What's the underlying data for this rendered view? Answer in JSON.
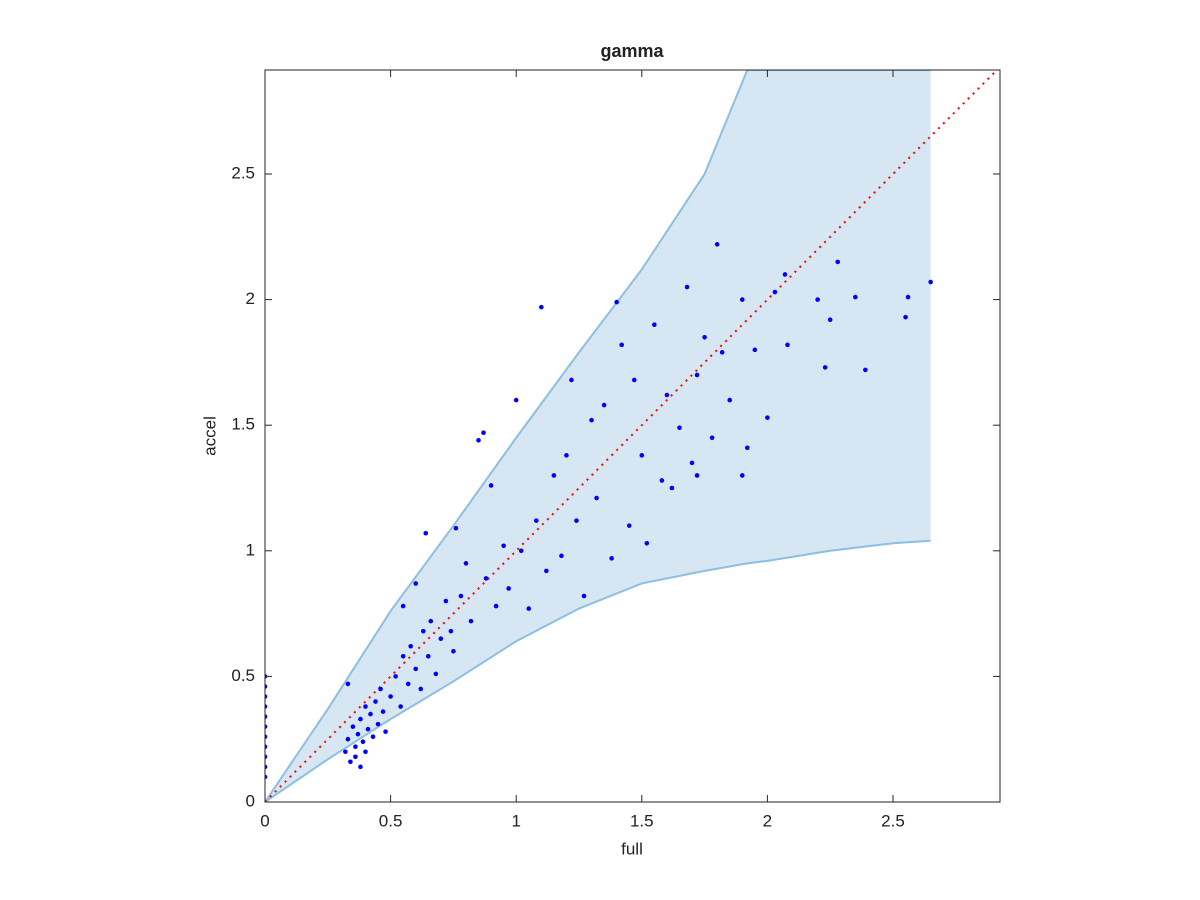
{
  "chart_data": {
    "type": "scatter",
    "title": "gamma",
    "x_label": "full",
    "y_label": "accel",
    "xlim": [
      0,
      2.926
    ],
    "ylim": [
      0,
      2.914
    ],
    "xticks": [
      0,
      0.5,
      1,
      1.5,
      2,
      2.5
    ],
    "yticks": [
      0,
      0.5,
      1,
      1.5,
      2,
      2.5
    ],
    "grid": false,
    "band": {
      "color": "#d6e7f3",
      "edge_color": "#8cbfe0",
      "x": [
        0,
        0.25,
        0.5,
        0.75,
        1,
        1.25,
        1.5,
        1.75,
        1.92,
        2.0,
        2.25,
        2.5,
        2.65
      ],
      "upper": [
        0,
        0.37,
        0.76,
        1.1,
        1.45,
        1.79,
        2.12,
        2.5,
        2.914,
        2.914,
        2.914,
        2.914,
        2.914
      ],
      "lower": [
        0,
        0.17,
        0.33,
        0.48,
        0.64,
        0.77,
        0.87,
        0.92,
        0.95,
        0.96,
        1.0,
        1.03,
        1.04
      ]
    },
    "diagonal": {
      "color": "#ff0000",
      "x": [
        0,
        2.926
      ],
      "y": [
        0,
        2.926
      ]
    },
    "points": {
      "color": "#0000ff",
      "x": [
        0,
        0,
        0,
        0,
        0,
        0,
        0,
        0,
        0,
        0,
        0,
        0.32,
        0.33,
        0.34,
        0.35,
        0.36,
        0.37,
        0.38,
        0.38,
        0.39,
        0.4,
        0.41,
        0.42,
        0.43,
        0.44,
        0.45,
        0.46,
        0.47,
        0.48,
        0.33,
        0.36,
        0.4,
        0.5,
        0.52,
        0.54,
        0.55,
        0.57,
        0.58,
        0.6,
        0.62,
        0.63,
        0.65,
        0.66,
        0.68,
        0.7,
        0.72,
        0.74,
        0.75,
        0.55,
        0.6,
        0.64,
        0.76,
        0.78,
        0.8,
        0.82,
        0.85,
        0.87,
        0.88,
        0.9,
        0.92,
        0.95,
        0.97,
        1.0,
        1.02,
        1.05,
        1.08,
        1.1,
        1.12,
        1.15,
        1.18,
        1.2,
        1.22,
        1.24,
        1.27,
        1.3,
        1.32,
        1.35,
        1.38,
        1.4,
        1.42,
        1.45,
        1.47,
        1.5,
        1.52,
        1.55,
        1.58,
        1.6,
        1.62,
        1.65,
        1.68,
        1.7,
        1.72,
        1.75,
        1.78,
        1.8,
        1.82,
        1.85,
        1.9,
        1.92,
        1.95,
        2.0,
        2.03,
        2.07,
        2.08,
        2.2,
        2.23,
        2.25,
        2.28,
        2.35,
        2.39,
        2.55,
        2.56,
        2.65,
        1.9,
        1.72
      ],
      "y": [
        0.1,
        0.14,
        0.18,
        0.22,
        0.26,
        0.3,
        0.34,
        0.38,
        0.42,
        0.46,
        0.5,
        0.2,
        0.25,
        0.16,
        0.3,
        0.22,
        0.27,
        0.14,
        0.33,
        0.24,
        0.2,
        0.29,
        0.35,
        0.26,
        0.4,
        0.31,
        0.45,
        0.36,
        0.28,
        0.47,
        0.18,
        0.38,
        0.42,
        0.5,
        0.38,
        0.58,
        0.47,
        0.62,
        0.53,
        0.45,
        0.68,
        0.58,
        0.72,
        0.51,
        0.65,
        0.8,
        0.68,
        0.6,
        0.78,
        0.87,
        1.07,
        1.09,
        0.82,
        0.95,
        0.72,
        1.44,
        1.47,
        0.89,
        1.26,
        0.78,
        1.02,
        0.85,
        1.6,
        1.0,
        0.77,
        1.12,
        1.97,
        0.92,
        1.3,
        0.98,
        1.38,
        1.68,
        1.12,
        0.82,
        1.52,
        1.21,
        1.58,
        0.97,
        1.99,
        1.82,
        1.1,
        1.68,
        1.38,
        1.03,
        1.9,
        1.28,
        1.62,
        1.25,
        1.49,
        2.05,
        1.35,
        1.7,
        1.85,
        1.45,
        2.22,
        1.79,
        1.6,
        2.0,
        1.41,
        1.8,
        1.53,
        2.03,
        2.1,
        1.82,
        2.0,
        1.73,
        1.92,
        2.15,
        2.01,
        1.72,
        1.93,
        2.01,
        2.07,
        1.3,
        1.3
      ]
    }
  }
}
